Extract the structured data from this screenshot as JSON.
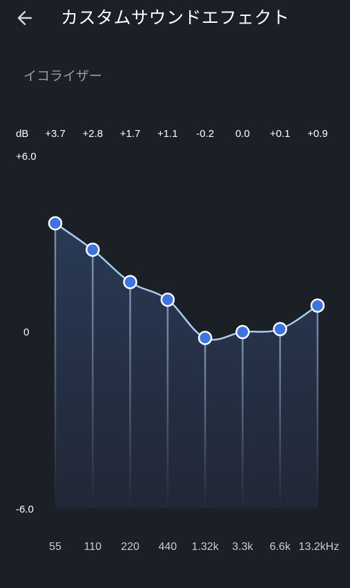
{
  "header": {
    "title": "カスタムサウンドエフェクト",
    "back_icon": "arrow-left-icon"
  },
  "section": {
    "label": "イコライザー"
  },
  "colors": {
    "background": "#1b1f26",
    "curve": "#a9cff0",
    "knob_fill": "#3d74e0",
    "knob_border": "#ffffff",
    "slider_track": "#7d95b3",
    "label_muted": "#9aa0a8"
  },
  "chart_data": {
    "type": "line",
    "unit_label": "dB",
    "ylim": [
      -6.0,
      6.0
    ],
    "y_ticks": [
      {
        "value": 6.0,
        "label": "+6.0"
      },
      {
        "value": 0,
        "label": "0"
      },
      {
        "value": -6.0,
        "label": "-6.0"
      }
    ],
    "bands": [
      {
        "freq": "55",
        "value": 3.7,
        "value_label": "+3.7"
      },
      {
        "freq": "110",
        "value": 2.8,
        "value_label": "+2.8"
      },
      {
        "freq": "220",
        "value": 1.7,
        "value_label": "+1.7"
      },
      {
        "freq": "440",
        "value": 1.1,
        "value_label": "+1.1"
      },
      {
        "freq": "1.32k",
        "value": -0.2,
        "value_label": "-0.2"
      },
      {
        "freq": "3.3k",
        "value": 0.0,
        "value_label": "0.0"
      },
      {
        "freq": "6.6k",
        "value": 0.1,
        "value_label": "+0.1"
      },
      {
        "freq": "13.2kHz",
        "value": 0.9,
        "value_label": "+0.9"
      }
    ]
  }
}
